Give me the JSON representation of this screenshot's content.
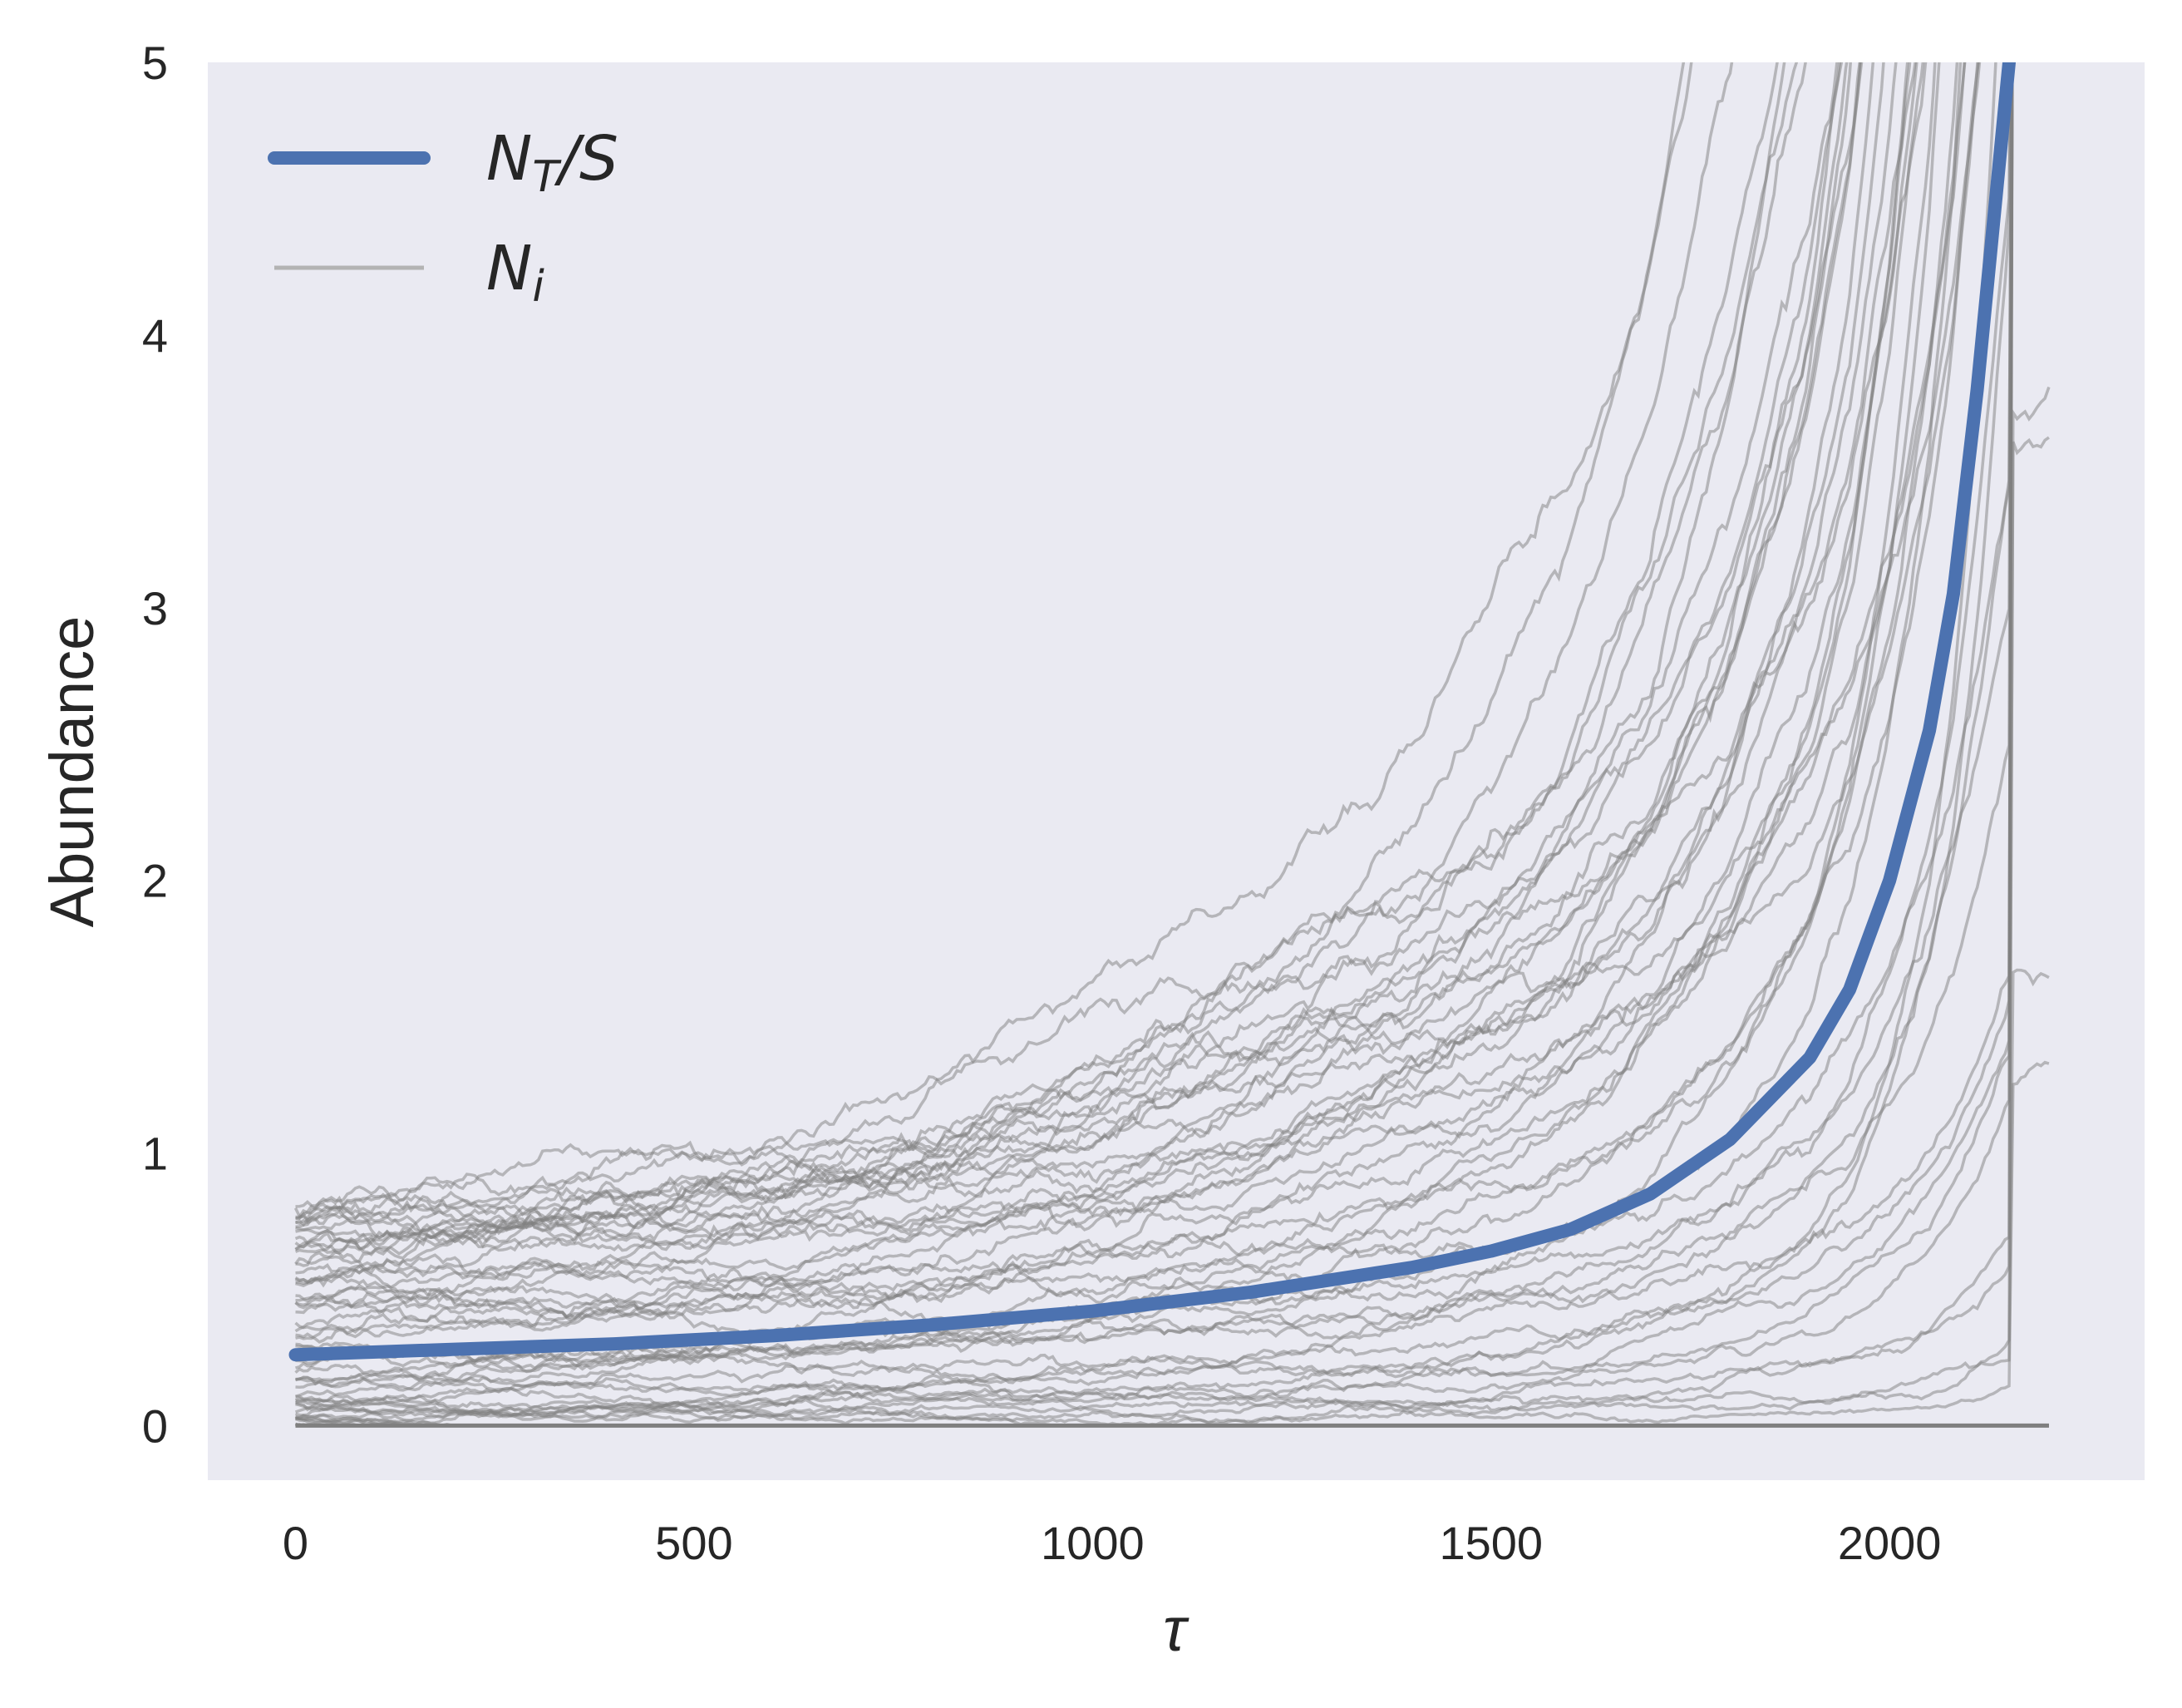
{
  "chart_data": {
    "type": "line",
    "title": "",
    "xlabel": "τ",
    "ylabel": "Abundance",
    "xlim": [
      -110,
      2320
    ],
    "ylim": [
      -0.2,
      5
    ],
    "x_ticks": [
      0,
      500,
      1000,
      1500,
      2000
    ],
    "y_ticks": [
      0,
      1,
      2,
      3,
      4,
      5
    ],
    "grid": false,
    "background": "#eaeaf2",
    "legend_position": "top-left",
    "legend": [
      {
        "label_main": "N",
        "label_sub": "T",
        "label_tail": "/S",
        "color": "#4c72b0"
      },
      {
        "label_main": "N",
        "label_sub": "i",
        "label_tail": "",
        "color": "#b3b3b3"
      }
    ],
    "series": [
      {
        "name": "N_T/S",
        "color": "#4c72b0",
        "points": [
          [
            0,
            0.26
          ],
          [
            200,
            0.28
          ],
          [
            400,
            0.3
          ],
          [
            600,
            0.33
          ],
          [
            800,
            0.37
          ],
          [
            1000,
            0.42
          ],
          [
            1200,
            0.49
          ],
          [
            1400,
            0.58
          ],
          [
            1500,
            0.64
          ],
          [
            1600,
            0.72
          ],
          [
            1700,
            0.85
          ],
          [
            1800,
            1.05
          ],
          [
            1900,
            1.35
          ],
          [
            1950,
            1.6
          ],
          [
            2000,
            2.0
          ],
          [
            2050,
            2.55
          ],
          [
            2080,
            3.05
          ],
          [
            2110,
            3.8
          ],
          [
            2130,
            4.4
          ],
          [
            2150,
            5.0
          ]
        ]
      },
      {
        "name": "N_i",
        "color": "#7f7f7f",
        "trajectory_count": 60,
        "initial_range": [
          0,
          0.9
        ],
        "end_x": 2200,
        "envelope_upper": [
          [
            0,
            0.9
          ],
          [
            500,
            1.1
          ],
          [
            1000,
            1.55
          ],
          [
            1300,
            2.1
          ],
          [
            1500,
            2.7
          ],
          [
            1700,
            3.7
          ],
          [
            1800,
            4.6
          ],
          [
            1850,
            5.0
          ]
        ],
        "extinct_baseline": 0
      }
    ]
  }
}
